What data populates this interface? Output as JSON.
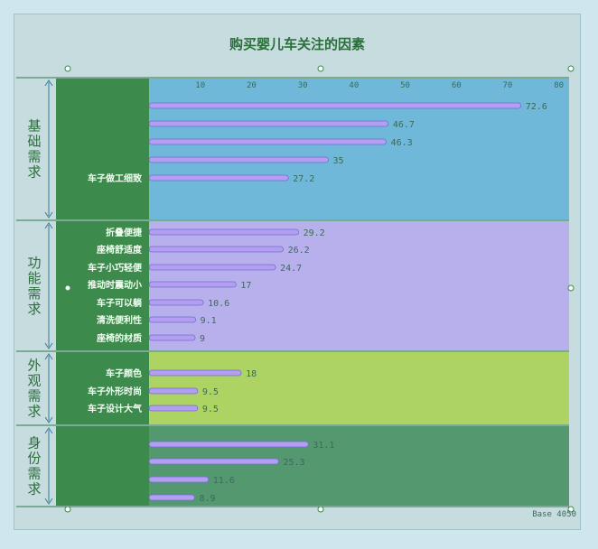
{
  "chart_data": {
    "type": "bar",
    "orientation": "horizontal",
    "title": "购买婴儿车关注的因素",
    "x_ticks": [
      10,
      20,
      30,
      40,
      50,
      60,
      70,
      80
    ],
    "xlim": [
      0,
      82
    ],
    "base_note": "Base 4050",
    "groups": [
      {
        "name": "基础需求",
        "color": "#5fb1d8",
        "items": [
          {
            "label": "",
            "value": 72.6,
            "value_text": "72.6"
          },
          {
            "label": "",
            "value": 46.7,
            "value_text": "46.7"
          },
          {
            "label": "",
            "value": 46.3,
            "value_text": "46.3"
          },
          {
            "label": "",
            "value": 35,
            "value_text": "35"
          },
          {
            "label": "车子做工细致",
            "value": 27.2,
            "value_text": "27.2"
          }
        ]
      },
      {
        "name": "功能需求",
        "color": "#b4a8ee",
        "items": [
          {
            "label": "折叠便捷",
            "value": 29.2,
            "value_text": "29.2"
          },
          {
            "label": "座椅舒适度",
            "value": 26.2,
            "value_text": "26.2"
          },
          {
            "label": "车子小巧轻便",
            "value": 24.7,
            "value_text": "24.7"
          },
          {
            "label": "推动时震动小",
            "value": 17,
            "value_text": "17"
          },
          {
            "label": "车子可以躺",
            "value": 10.6,
            "value_text": "10.6"
          },
          {
            "label": "清洗便利性",
            "value": 9.1,
            "value_text": "9.1"
          },
          {
            "label": "座椅的材质",
            "value": 9,
            "value_text": "9"
          }
        ]
      },
      {
        "name": "外观需求",
        "color": "#a8d24e",
        "items": [
          {
            "label": "车子颜色",
            "value": 18,
            "value_text": "18"
          },
          {
            "label": "车子外形时尚",
            "value": 9.5,
            "value_text": "9.5"
          },
          {
            "label": "车子设计大气",
            "value": 9.5,
            "value_text": "9.5"
          }
        ]
      },
      {
        "name": "身份需求",
        "color": "#3f8c5c",
        "items": [
          {
            "label": "",
            "value": 31.1,
            "value_text": "31.1"
          },
          {
            "label": "",
            "value": 25.3,
            "value_text": "25.3"
          },
          {
            "label": "",
            "value": 11.6,
            "value_text": "11.6"
          },
          {
            "label": "",
            "value": 8.9,
            "value_text": "8.9"
          }
        ]
      }
    ]
  }
}
